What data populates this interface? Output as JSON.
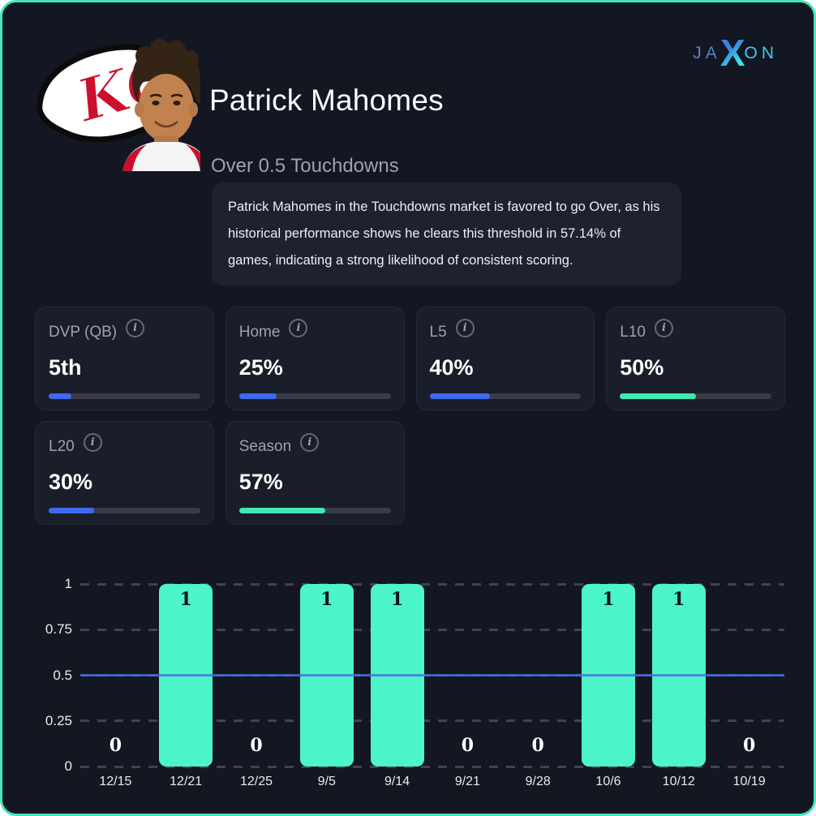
{
  "frame": {
    "background": "#131722",
    "border_color": "#43e5ba"
  },
  "brand": {
    "ja": "JA",
    "x": "X",
    "on": "ON",
    "ja_color": "#5b82c8",
    "x_gradient": [
      "#3b82e0",
      "#3ee0e8"
    ],
    "on_color": "#45c8e8"
  },
  "header": {
    "player_name": "Patrick Mahomes",
    "market_title": "Over 0.5 Touchdowns",
    "description": "Patrick Mahomes in the Touchdowns market is favored to go Over, as his historical performance shows he clears this threshold in 57.14% of games, indicating a strong likelihood of consistent scoring.",
    "team_initials": "KC"
  },
  "stat_cards": [
    {
      "label": "DVP (QB)",
      "value": "5th",
      "progress_pct": 15,
      "bar_color": "#3e6af0"
    },
    {
      "label": "Home",
      "value": "25%",
      "progress_pct": 25,
      "bar_color": "#3e6af0"
    },
    {
      "label": "L5",
      "value": "40%",
      "progress_pct": 40,
      "bar_color": "#3e6af0"
    },
    {
      "label": "L10",
      "value": "50%",
      "progress_pct": 50,
      "bar_color": "#3ee9b4"
    },
    {
      "label": "L20",
      "value": "30%",
      "progress_pct": 30,
      "bar_color": "#3e6af0"
    },
    {
      "label": "Season",
      "value": "57%",
      "progress_pct": 57,
      "bar_color": "#3ee9b4"
    }
  ],
  "info_icon_glyph": "i",
  "chart_data": {
    "type": "bar",
    "categories": [
      "12/15",
      "12/21",
      "12/25",
      "9/5",
      "9/14",
      "9/21",
      "9/28",
      "10/6",
      "10/12",
      "10/19"
    ],
    "values": [
      0,
      1,
      0,
      1,
      1,
      0,
      0,
      1,
      1,
      0
    ],
    "ylim": [
      0,
      1
    ],
    "yticks": [
      0,
      0.25,
      0.5,
      0.75,
      1
    ],
    "ytick_labels": [
      "0",
      "0.25",
      "0.5",
      "0.75",
      "1"
    ],
    "threshold": 0.5,
    "threshold_color": "#4a6fe0",
    "bar_color": "#4cf5c9",
    "grid": "dashed-horizontal",
    "value_labels": true,
    "title": "",
    "xlabel": "",
    "ylabel": "",
    "legend": "none"
  }
}
